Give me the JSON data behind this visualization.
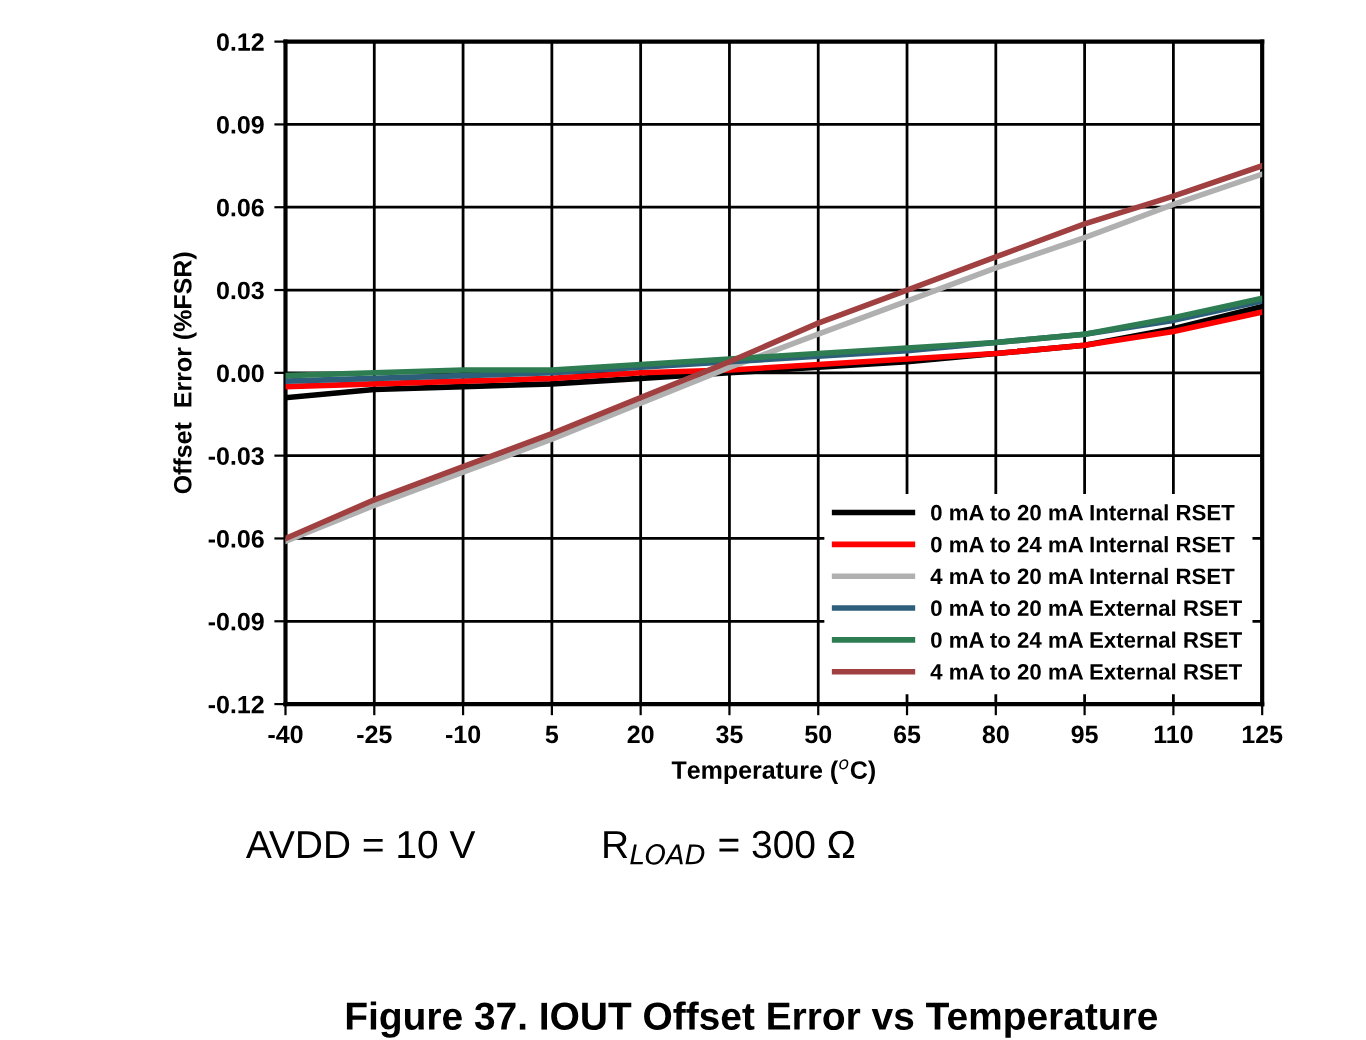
{
  "chart_data": {
    "type": "line",
    "title": "Figure 37. IOUT Offset Error vs Temperature",
    "xlabel": "Temperature ($^{o}$C)",
    "ylabel": "Offset  Error (%FSR)",
    "x": [
      -40,
      -25,
      -10,
      5,
      20,
      35,
      50,
      65,
      80,
      95,
      110,
      125
    ],
    "series": [
      {
        "name": "0 mA to 20 mA Internal RSET",
        "color": "#000000",
        "values": [
          -0.009,
          -0.006,
          -0.005,
          -0.004,
          -0.002,
          0.0,
          0.002,
          0.004,
          0.007,
          0.01,
          0.016,
          0.024
        ]
      },
      {
        "name": "0 mA to 24 mA Internal RSET",
        "color": "#ff0000",
        "values": [
          -0.005,
          -0.004,
          -0.003,
          -0.002,
          0.0,
          0.001,
          0.003,
          0.005,
          0.007,
          0.01,
          0.015,
          0.022
        ]
      },
      {
        "name": "4 mA to 20 mA Internal RSET",
        "color": "#b0b0b0",
        "values": [
          -0.061,
          -0.048,
          -0.036,
          -0.024,
          -0.011,
          0.002,
          0.014,
          0.026,
          0.038,
          0.049,
          0.061,
          0.072
        ]
      },
      {
        "name": "0 mA to 20 mA External RSET",
        "color": "#2e5f7a",
        "values": [
          -0.003,
          -0.002,
          -0.001,
          0.0,
          0.002,
          0.004,
          0.006,
          0.008,
          0.011,
          0.014,
          0.019,
          0.026
        ]
      },
      {
        "name": "0 mA to 24 mA External RSET",
        "color": "#2e7d52",
        "values": [
          -0.001,
          0.0,
          0.001,
          0.001,
          0.003,
          0.005,
          0.007,
          0.009,
          0.011,
          0.014,
          0.02,
          0.027
        ]
      },
      {
        "name": "4 mA to 20 mA External RSET",
        "color": "#a04040",
        "values": [
          -0.06,
          -0.046,
          -0.034,
          -0.022,
          -0.009,
          0.004,
          0.018,
          0.03,
          0.042,
          0.054,
          0.064,
          0.075
        ]
      }
    ],
    "xlim": [
      -40,
      125
    ],
    "xticks": [
      -40,
      -25,
      -10,
      5,
      20,
      35,
      50,
      65,
      80,
      95,
      110,
      125
    ],
    "ylim": [
      -0.12,
      0.12
    ],
    "yticks": [
      {
        "value": -0.12,
        "label": "-0.12"
      },
      {
        "value": -0.09,
        "label": "-0.09"
      },
      {
        "value": -0.06,
        "label": "-0.06"
      },
      {
        "value": -0.03,
        "label": "-0.03"
      },
      {
        "value": 0,
        "label": "0.00"
      },
      {
        "value": 0.03,
        "label": "0.03"
      },
      {
        "value": 0.06,
        "label": "0.06"
      },
      {
        "value": 0.09,
        "label": "0.09"
      },
      {
        "value": 0.12,
        "label": "0.12"
      }
    ],
    "grid": true,
    "legend": "bottom right",
    "line_style": "solid",
    "marker": "none",
    "annotations": [
      "AVDD = 10 V",
      "R$_{LOAD}$ = 300 Ω"
    ]
  }
}
